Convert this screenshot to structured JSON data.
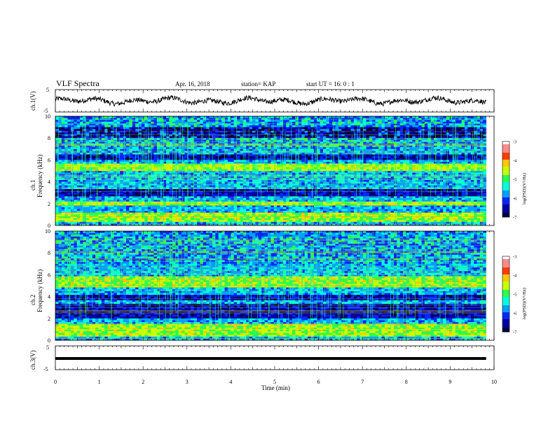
{
  "header": {
    "title": "VLF Spectra",
    "date": "Apr. 16, 2018",
    "station": "station= KAP",
    "start": "start  UT  =   16: 0  : 1"
  },
  "chart_data": [
    {
      "id": "ch1",
      "type": "line",
      "ylabel": "ch.1(V)",
      "ylim": [
        -5,
        5
      ],
      "yticks": [
        "5",
        "-5"
      ],
      "x_range_min": [
        0,
        9.82
      ],
      "description_level": "noisy waveform oscillating near 0 V, mostly between -2 V and +2 V"
    },
    {
      "id": "ch1_spectrogram",
      "type": "heatmap",
      "ylabel_channel": "ch.1",
      "ylabel": "Frequency (kHz)",
      "ylim": [
        0,
        10
      ],
      "yticks": [
        "10",
        "8",
        "6",
        "4",
        "2",
        "0"
      ],
      "colorbar": {
        "ticks": [
          "-3",
          "-4",
          "-5",
          "-6",
          "-7"
        ],
        "label": "log(PSD)(V²/Hz)",
        "range": [
          -7,
          -3
        ]
      },
      "dark_bands_khz": [
        [
          2.7,
          3.3
        ],
        [
          6.0,
          6.5
        ],
        [
          8.0,
          9.0
        ]
      ],
      "bright_bands_khz": [
        [
          0.3,
          1.2
        ],
        [
          1.8,
          2.2
        ],
        [
          5.0,
          5.6
        ]
      ]
    },
    {
      "id": "ch2_spectrogram",
      "type": "heatmap",
      "ylabel_channel": "ch.2",
      "ylabel": "Frequency (kHz)",
      "ylim": [
        0,
        10
      ],
      "yticks": [
        "10",
        "8",
        "6",
        "4",
        "2",
        "0"
      ],
      "colorbar": {
        "ticks": [
          "-3",
          "-4",
          "-5",
          "-6",
          "-7"
        ],
        "label": "log(PSD)(V²/Hz)",
        "range": [
          -7,
          -3
        ]
      },
      "dark_bands_khz": [
        [
          2.0,
          3.3
        ],
        [
          3.7,
          4.2
        ]
      ],
      "bright_bands_khz": [
        [
          0.3,
          1.5
        ],
        [
          4.8,
          5.8
        ]
      ]
    },
    {
      "id": "ch3",
      "type": "line",
      "ylabel": "ch.3(V)",
      "ylim": [
        -5,
        5
      ],
      "yticks": [
        "5",
        "-5"
      ],
      "constant_value": 0,
      "x_range_min": [
        0,
        9.82
      ]
    }
  ],
  "xaxis": {
    "label": "Time (min)",
    "ticks": [
      "0",
      "1",
      "2",
      "3",
      "4",
      "5",
      "6",
      "7",
      "8",
      "9",
      "10"
    ],
    "xlim": [
      0,
      10
    ]
  },
  "colors": {
    "colormap": [
      "#00003c",
      "#0000a0",
      "#0028ff",
      "#00a0ff",
      "#00ffdc",
      "#28ff50",
      "#c8ff00",
      "#ffc800",
      "#ff3c00",
      "#ff8c8c",
      "#ffffff"
    ]
  }
}
